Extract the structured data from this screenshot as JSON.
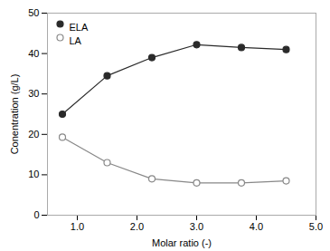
{
  "chart_data": {
    "type": "line",
    "xlabel": "Molar ratio (-)",
    "ylabel": "Conentration (g/L)",
    "x": [
      0.75,
      1.5,
      2.25,
      3.0,
      3.75,
      4.5
    ],
    "series": [
      {
        "name": "ELA",
        "color": "#2a2a2a",
        "marker": "circle",
        "values": [
          25.0,
          34.5,
          39.0,
          42.2,
          41.5,
          41.0
        ]
      },
      {
        "name": "LA",
        "color": "#888888",
        "marker": "open_circle",
        "values": [
          19.3,
          13.0,
          9.0,
          8.0,
          8.0,
          8.5
        ]
      }
    ],
    "xlim": [
      0.5,
      5.0
    ],
    "ylim": [
      0,
      50
    ],
    "xticks": [
      1,
      2,
      3,
      4,
      5
    ],
    "yticks": [
      0,
      10,
      20,
      30,
      40,
      50
    ],
    "grid": false,
    "legend": "upper left"
  }
}
